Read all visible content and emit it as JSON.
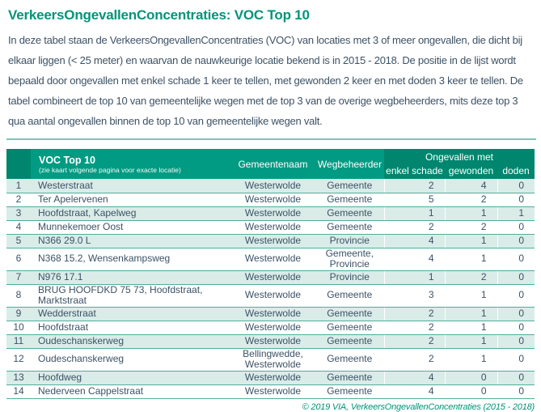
{
  "title": "VerkeersOngevallenConcentraties: VOC Top 10",
  "intro": "In deze tabel staan de VerkeersOngevallenConcentraties (VOC) van locaties met 3 of meer ongevallen, die dicht bij elkaar liggen (< 25 meter) en waarvan de nauwkeurige locatie bekend is in 2015 - 2018. De positie in de lijst wordt bepaald door ongevallen met enkel schade 1 keer te tellen, met gewonden 2 keer en met doden 3 keer te tellen. De tabel combineert de top 10 van gemeentelijke wegen met de top 3 van de overige wegbeheerders, mits deze top 3 qua aantal ongevallen binnen de top 10 van gemeentelijke wegen valt.",
  "colors": {
    "accent_teal": "#009579",
    "header_teal": "#009b82",
    "header_dark_teal": "#00866f",
    "row_shade": "#d9ece8",
    "body_text": "#3d5266"
  },
  "table": {
    "headers": {
      "location_title": "VOC Top 10",
      "location_subtitle": "(zie kaart volgende pagina voor exacte locatie)",
      "municipality": "Gemeentenaam",
      "road_authority": "Wegbeheerder",
      "accidents_group": "Ongevallen met",
      "damage_only": "enkel schade",
      "injured": "gewonden",
      "fatalities": "doden"
    },
    "rows": [
      {
        "rank": "1",
        "location": "Westerstraat",
        "municipality": "Westerwolde",
        "authority": "Gemeente",
        "damage": "2",
        "injured": "4",
        "deaths": "0"
      },
      {
        "rank": "2",
        "location": "Ter Apelervenen",
        "municipality": "Westerwolde",
        "authority": "Gemeente",
        "damage": "5",
        "injured": "2",
        "deaths": "0"
      },
      {
        "rank": "3",
        "location": "Hoofdstraat, Kapelweg",
        "municipality": "Westerwolde",
        "authority": "Gemeente",
        "damage": "1",
        "injured": "1",
        "deaths": "1"
      },
      {
        "rank": "4",
        "location": "Munnekemoer Oost",
        "municipality": "Westerwolde",
        "authority": "Gemeente",
        "damage": "2",
        "injured": "2",
        "deaths": "0"
      },
      {
        "rank": "5",
        "location": "N366 29.0 L",
        "municipality": "Westerwolde",
        "authority": "Provincie",
        "damage": "4",
        "injured": "1",
        "deaths": "0"
      },
      {
        "rank": "6",
        "location": "N368 15.2, Wensenkampsweg",
        "municipality": "Westerwolde",
        "authority": "Gemeente, Provincie",
        "damage": "4",
        "injured": "1",
        "deaths": "0"
      },
      {
        "rank": "7",
        "location": "N976 17.1",
        "municipality": "Westerwolde",
        "authority": "Provincie",
        "damage": "1",
        "injured": "2",
        "deaths": "0"
      },
      {
        "rank": "8",
        "location": "BRUG HOOFDKD 75 73, Hoofdstraat, Marktstraat",
        "municipality": "Westerwolde",
        "authority": "Gemeente",
        "damage": "3",
        "injured": "1",
        "deaths": "0"
      },
      {
        "rank": "9",
        "location": "Wedderstraat",
        "municipality": "Westerwolde",
        "authority": "Gemeente",
        "damage": "2",
        "injured": "1",
        "deaths": "0"
      },
      {
        "rank": "10",
        "location": "Hoofdstraat",
        "municipality": "Westerwolde",
        "authority": "Gemeente",
        "damage": "2",
        "injured": "1",
        "deaths": "0"
      },
      {
        "rank": "11",
        "location": "Oudeschanskerweg",
        "municipality": "Westerwolde",
        "authority": "Gemeente",
        "damage": "2",
        "injured": "1",
        "deaths": "0"
      },
      {
        "rank": "12",
        "location": "Oudeschanskerweg",
        "municipality": "Bellingwedde, Westerwolde",
        "authority": "Gemeente",
        "damage": "2",
        "injured": "1",
        "deaths": "0"
      },
      {
        "rank": "13",
        "location": "Hoofdweg",
        "municipality": "Westerwolde",
        "authority": "Gemeente",
        "damage": "4",
        "injured": "0",
        "deaths": "0"
      },
      {
        "rank": "14",
        "location": "Nederveen Cappelstraat",
        "municipality": "Westerwolde",
        "authority": "Gemeente",
        "damage": "4",
        "injured": "0",
        "deaths": "0"
      }
    ]
  },
  "footer": "© 2019 VIA, VerkeersOngevallenConcentraties (2015 - 2018)"
}
